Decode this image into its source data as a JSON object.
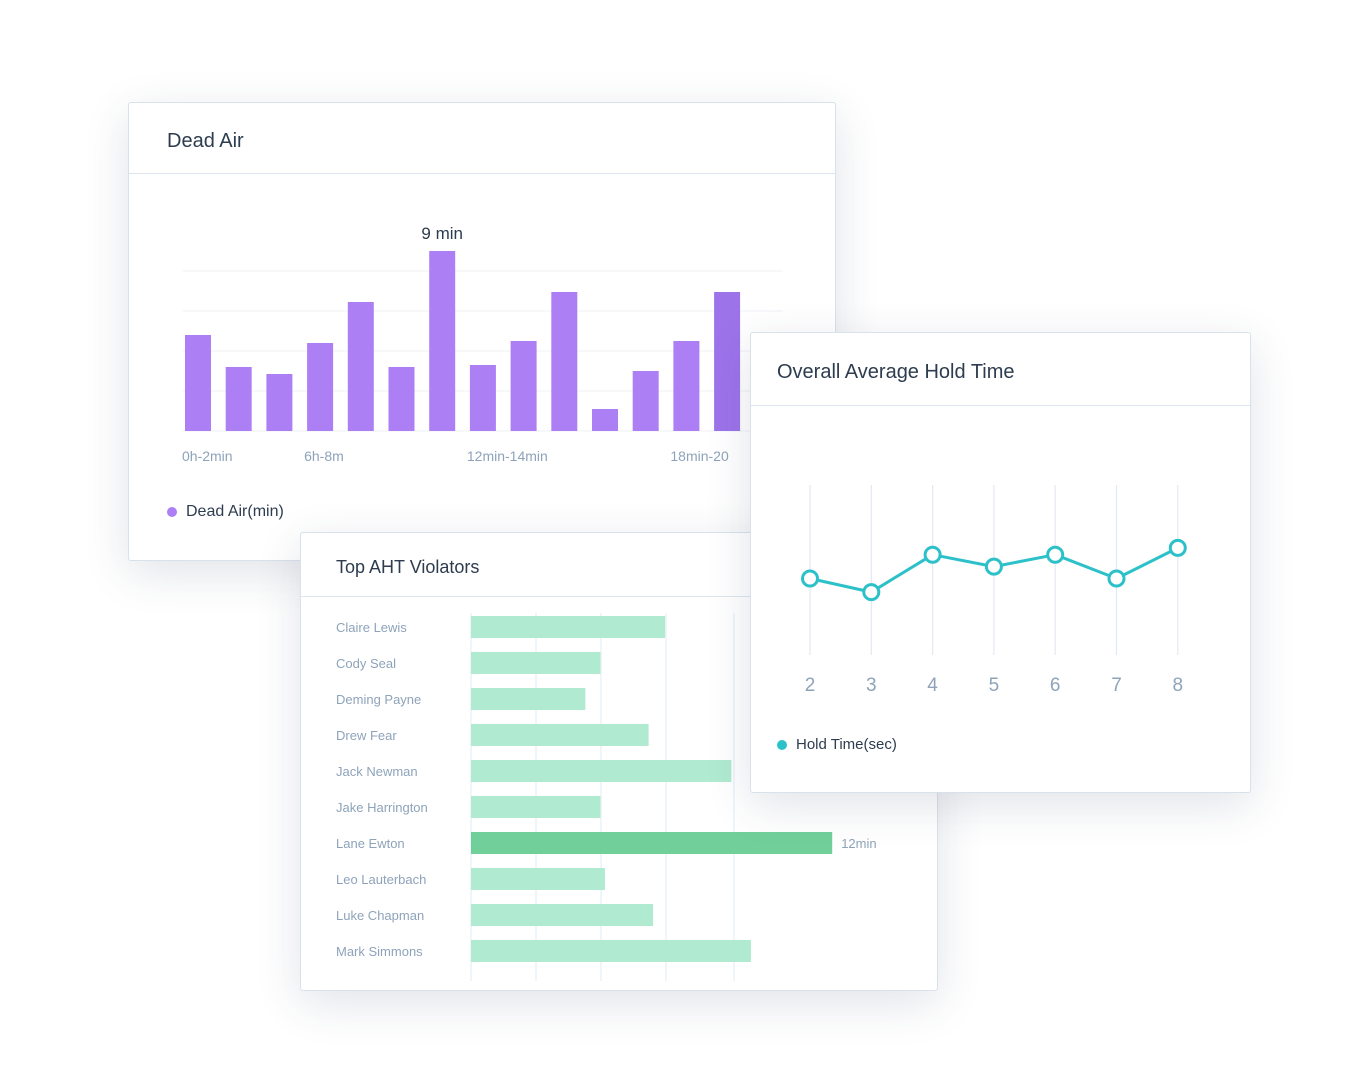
{
  "colors": {
    "dead_air_bar": "#ad7ff5",
    "dead_air_bar_last": "#9d73ea",
    "aht_bar": "#b0ead0",
    "aht_bar_highlight": "#71d09a",
    "hold_line": "#2cc1c9",
    "axis_text": "#8ea3ba",
    "title_text": "#2d3c4f"
  },
  "dead_air": {
    "title": "Dead Air",
    "legend": "Dead Air(min)",
    "highlight_label": "9 min"
  },
  "aht": {
    "title": "Top AHT Violators",
    "highlight_label": "12min"
  },
  "hold": {
    "title": "Overall Average Hold Time",
    "legend": "Hold Time(sec)"
  },
  "chart_data": [
    {
      "type": "bar",
      "title": "Dead Air",
      "x_tick_labels": [
        "0h-2min",
        "6h-8m",
        "12min-14min",
        "18min-20"
      ],
      "values": [
        4.8,
        3.2,
        2.85,
        4.4,
        6.45,
        3.2,
        9.0,
        3.3,
        4.5,
        6.95,
        1.1,
        3.0,
        4.5,
        6.95
      ],
      "annotation": "9 min",
      "ylim": [
        0,
        10
      ],
      "grid": true,
      "series": [
        {
          "name": "Dead Air(min)"
        }
      ]
    },
    {
      "type": "bar",
      "orientation": "horizontal",
      "title": "Top AHT Violators",
      "categories": [
        "Claire Lewis",
        "Cody Seal",
        "Deming Payne",
        "Drew Fear",
        "Jack Newman",
        "Jake Harrington",
        "Lane Ewton",
        "Leo Lauterbach",
        "Luke Chapman",
        "Mark Simmons"
      ],
      "values": [
        6.45,
        4.3,
        3.8,
        5.9,
        8.65,
        4.3,
        12,
        4.45,
        6.05,
        9.3
      ],
      "annotation": "12min",
      "xlim": [
        0,
        13.3
      ],
      "grid": true
    },
    {
      "type": "line",
      "title": "Overall Average Hold Time",
      "x": [
        2,
        3,
        4,
        5,
        6,
        7,
        8
      ],
      "values": [
        45,
        37,
        59,
        52,
        59,
        45,
        63
      ],
      "ylim": [
        0,
        100
      ],
      "grid": true,
      "series": [
        {
          "name": "Hold Time(sec)"
        }
      ]
    }
  ]
}
